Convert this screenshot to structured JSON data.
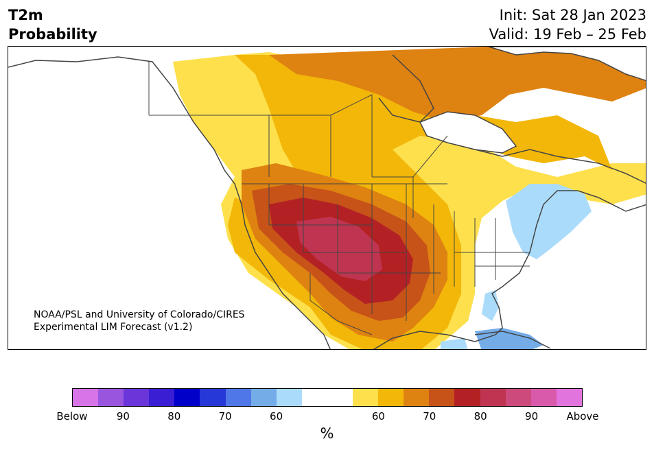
{
  "header": {
    "title_line1": "T2m",
    "title_line2": "Probability",
    "init_text": "Init: Sat 28 Jan 2023",
    "valid_text": "Valid: 19 Feb – 25 Feb"
  },
  "credit": {
    "line1": "NOAA/PSL and University of Colorado/CIRES",
    "line2": "Experimental LIM Forecast (v1.2)"
  },
  "colorbar": {
    "unit": "%",
    "colors": [
      "#d674e8",
      "#9a55df",
      "#6a36da",
      "#3a1ed4",
      "#0000c8",
      "#2738d8",
      "#5077e8",
      "#74ace8",
      "#abdbfa",
      "#ffffff",
      "#ffffff",
      "#fde04c",
      "#f2b709",
      "#de8211",
      "#c75318",
      "#b42124",
      "#bf3450",
      "#cc4b7c",
      "#d95aaa",
      "#e274dd"
    ],
    "tick_labels": [
      {
        "text": "Below",
        "boundary": 0
      },
      {
        "text": "90",
        "boundary": 2
      },
      {
        "text": "80",
        "boundary": 4
      },
      {
        "text": "70",
        "boundary": 6
      },
      {
        "text": "60",
        "boundary": 8
      },
      {
        "text": "60",
        "boundary": 12
      },
      {
        "text": "70",
        "boundary": 14
      },
      {
        "text": "80",
        "boundary": 16
      },
      {
        "text": "90",
        "boundary": 18
      },
      {
        "text": "Above",
        "boundary": 20
      }
    ]
  }
}
